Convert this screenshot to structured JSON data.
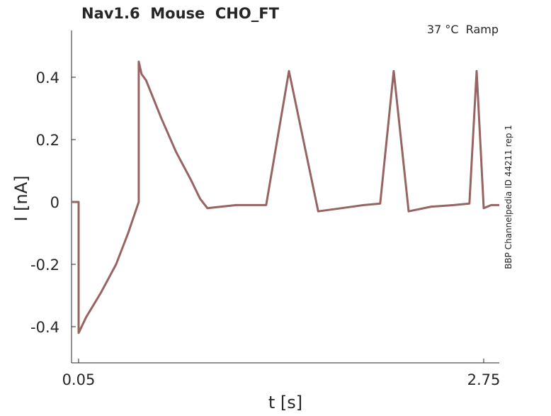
{
  "chart_data": {
    "type": "line",
    "title": "Nav1.6  Mouse  CHO_FT",
    "subtitle": "37 °C  Ramp",
    "side_label": "BBP Channelpedia ID 44211 rep 1",
    "xlabel": "t [s]",
    "ylabel": "I [nA]",
    "xlim": [
      0.003,
      2.854
    ],
    "ylim": [
      -0.516,
      0.55
    ],
    "xticks": [
      0.05,
      2.75
    ],
    "xtick_labels": [
      "0.05",
      "2.75"
    ],
    "yticks": [
      -0.4,
      -0.2,
      0,
      0.2,
      0.4
    ],
    "ytick_labels": [
      "-0.4",
      "-0.2",
      "0",
      "0.2",
      "0.4"
    ],
    "grid": false,
    "color": "#966462",
    "series": [
      {
        "x": [
          0.003,
          0.05,
          0.05,
          0.1,
          0.2,
          0.3,
          0.38,
          0.451,
          0.451,
          0.47,
          0.5,
          0.6,
          0.7,
          0.8,
          0.86,
          0.909,
          1.0,
          1.1,
          1.2,
          1.3,
          1.452,
          1.647,
          1.8,
          1.95,
          2.06,
          2.15,
          2.25,
          2.4,
          2.55,
          2.655,
          2.703,
          2.75,
          2.8,
          2.854
        ],
        "y": [
          0,
          0,
          -0.42,
          -0.37,
          -0.29,
          -0.2,
          -0.1,
          0,
          0.45,
          0.41,
          0.39,
          0.27,
          0.16,
          0.07,
          0.01,
          -0.02,
          -0.015,
          -0.01,
          -0.01,
          -0.01,
          0.42,
          -0.03,
          -0.02,
          -0.01,
          -0.005,
          0.42,
          -0.03,
          -0.015,
          -0.01,
          -0.005,
          0.42,
          -0.02,
          -0.01,
          -0.01
        ]
      }
    ]
  }
}
